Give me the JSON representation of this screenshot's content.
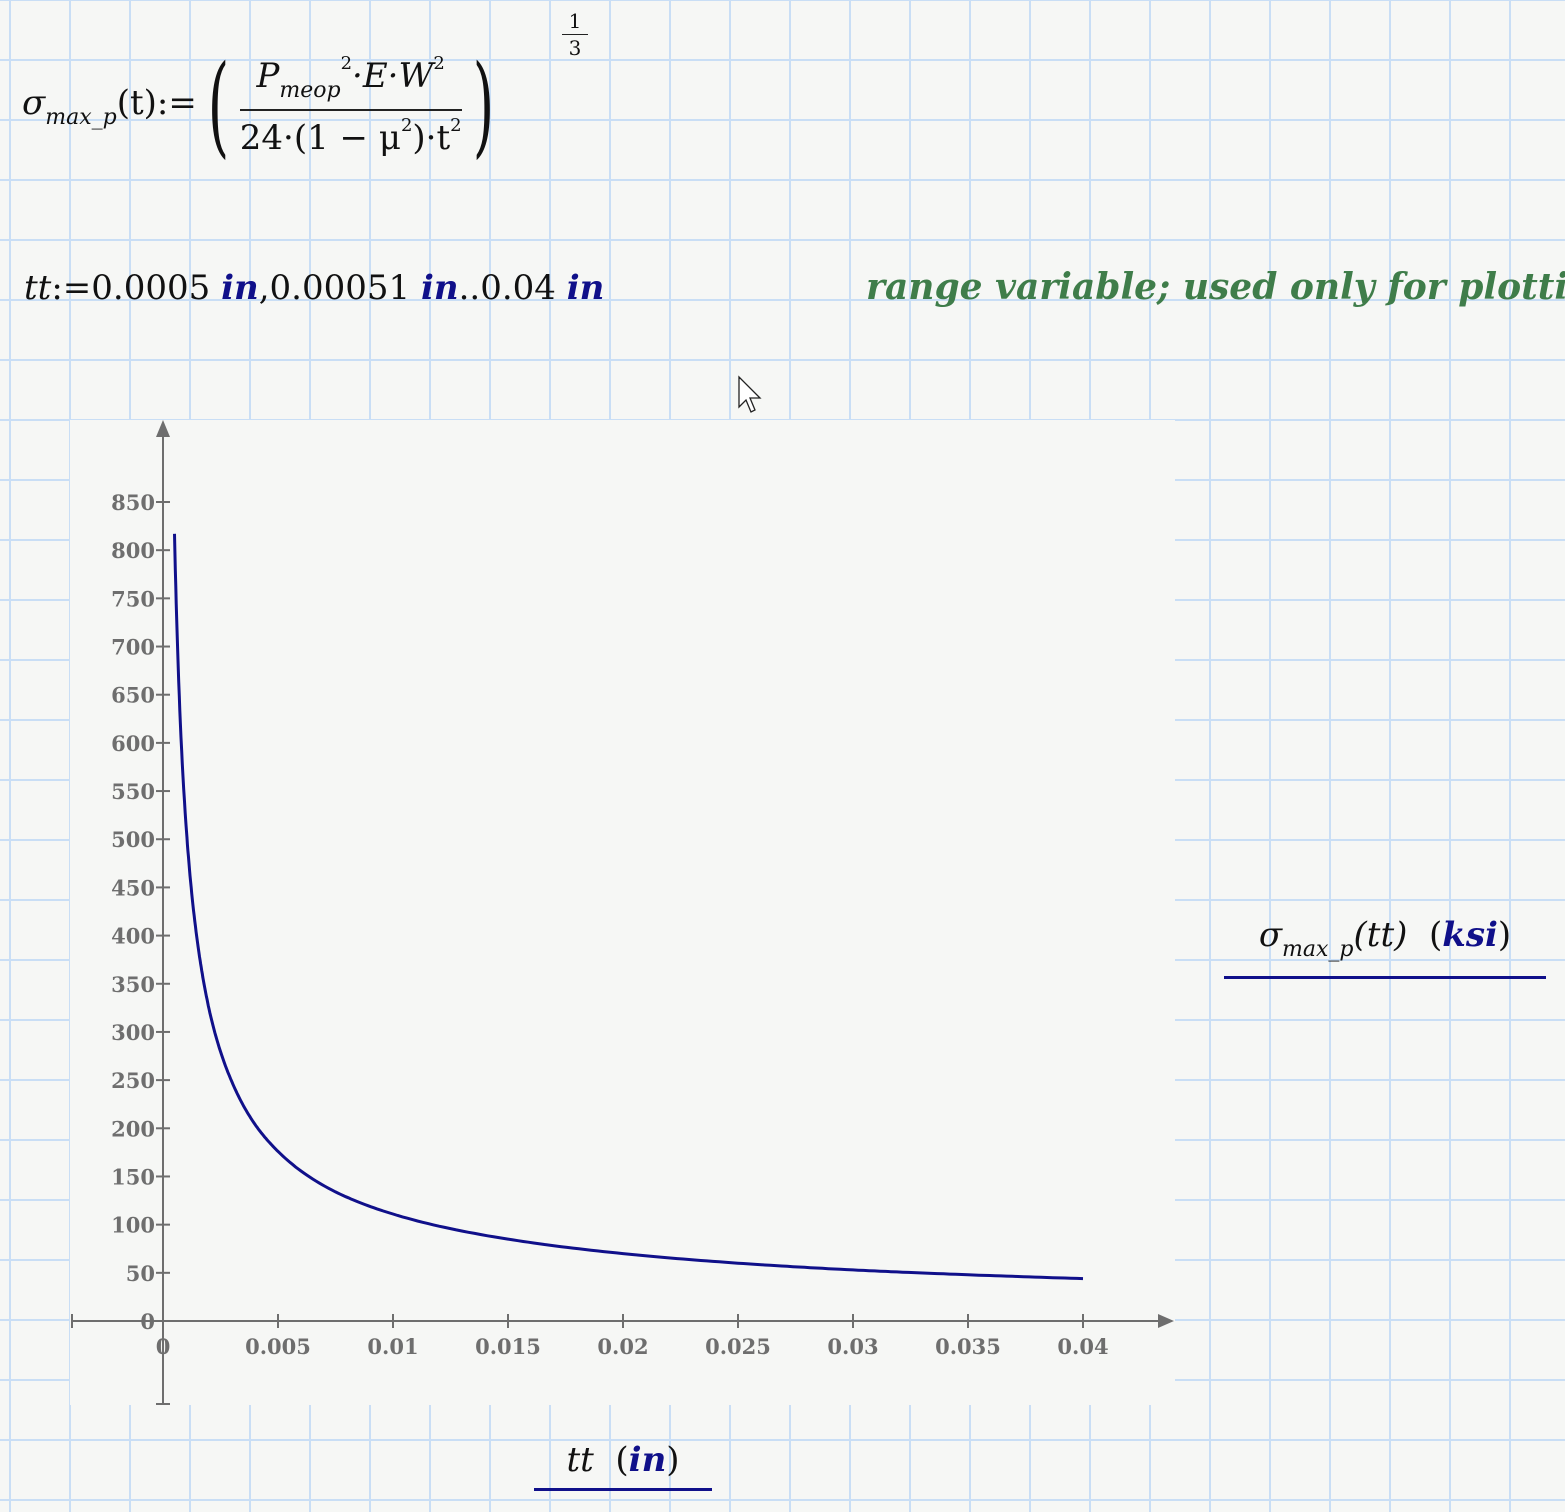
{
  "worksheet": {
    "formula": {
      "lhs_symbol": "σ",
      "lhs_subscript": "max_p",
      "lhs_arg": "(t)",
      "assign": ":=",
      "num_P": "P",
      "num_P_sub": "meop",
      "num_P_exp": "2",
      "num_rest": "·E·W",
      "num_W_exp": "2",
      "den_a": "24·(1 − μ",
      "den_mu_exp": "2",
      "den_b": ")·t",
      "den_t_exp": "2",
      "exponent_num": "1",
      "exponent_den": "3"
    },
    "range": {
      "var": "tt",
      "assign": ":=",
      "v1": "0.0005",
      "v2": "0.00051",
      "v3": "0.04",
      "unit": "in",
      "sep": ",",
      "dots": ".."
    },
    "comment": "range variable; used only for plotting."
  },
  "chart_data": {
    "type": "line",
    "x_label": {
      "var": "tt",
      "unit": "in"
    },
    "y_label": {
      "symbol": "σ",
      "subscript": "max_p",
      "arg": "(tt)",
      "unit": "ksi"
    },
    "xlim": [
      0,
      0.04
    ],
    "ylim": [
      0,
      850
    ],
    "x_ticks": [
      "0",
      "0.005",
      "0.01",
      "0.015",
      "0.02",
      "0.025",
      "0.03",
      "0.035",
      "0.04"
    ],
    "y_ticks": [
      "0",
      "50",
      "100",
      "150",
      "200",
      "250",
      "300",
      "350",
      "400",
      "450",
      "500",
      "550",
      "600",
      "650",
      "700",
      "750",
      "800",
      "850"
    ],
    "grid": false,
    "series": [
      {
        "color": "#10108a",
        "x": [
          0.0005,
          0.001,
          0.0015,
          0.002,
          0.003,
          0.004,
          0.005,
          0.0075,
          0.01,
          0.015,
          0.02,
          0.025,
          0.03,
          0.035,
          0.04
        ],
        "y": [
          817,
          515,
          393,
          324,
          248,
          204,
          176,
          134,
          111,
          85,
          70,
          60,
          53,
          48,
          44
        ]
      }
    ]
  }
}
